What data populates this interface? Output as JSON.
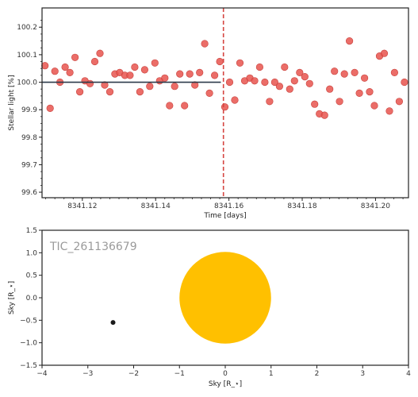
{
  "chart_data": [
    {
      "type": "scatter",
      "xlabel": "Time [days]",
      "ylabel": "Stellar light [%]",
      "xlim": [
        8341.109,
        8341.209
      ],
      "ylim": [
        99.58,
        100.27
      ],
      "xticks": [
        8341.12,
        8341.14,
        8341.16,
        8341.18,
        8341.2
      ],
      "xtick_labels": [
        "8341.12",
        "8341.14",
        "8341.16",
        "8341.18",
        "8341.20"
      ],
      "yticks": [
        99.6,
        99.7,
        99.8,
        99.9,
        100.0,
        100.1,
        100.2
      ],
      "ytick_labels": [
        "99.6",
        "99.7",
        "99.8",
        "99.9",
        "100.0",
        "100.1",
        "100.2"
      ],
      "grid": false,
      "colors": {
        "points": "#e8544e",
        "model_line": "#2b3a4a",
        "marker_line": "#d64541"
      },
      "model_line": {
        "x": [
          8341.109,
          8341.1578
        ],
        "y": [
          100.0,
          100.0
        ]
      },
      "vline": {
        "x": 8341.1585
      },
      "points": {
        "x": [
          8341.1098,
          8341.1112,
          8341.1125,
          8341.1139,
          8341.1153,
          8341.1166,
          8341.118,
          8341.1193,
          8341.1207,
          8341.1221,
          8341.1234,
          8341.1248,
          8341.1261,
          8341.1275,
          8341.1289,
          8341.1302,
          8341.1316,
          8341.133,
          8341.1343,
          8341.1357,
          8341.137,
          8341.1384,
          8341.1398,
          8341.1411,
          8341.1425,
          8341.1438,
          8341.1452,
          8341.1466,
          8341.1479,
          8341.1493,
          8341.1507,
          8341.152,
          8341.1534,
          8341.1547,
          8341.1561,
          8341.1575,
          8341.1589,
          8341.1602,
          8341.1616,
          8341.163,
          8341.1643,
          8341.1657,
          8341.167,
          8341.1684,
          8341.1698,
          8341.1711,
          8341.1725,
          8341.1738,
          8341.1752,
          8341.1766,
          8341.1779,
          8341.1793,
          8341.1807,
          8341.182,
          8341.1834,
          8341.1847,
          8341.1861,
          8341.1875,
          8341.1888,
          8341.1902,
          8341.1915,
          8341.1929,
          8341.1943,
          8341.1956,
          8341.197,
          8341.1984,
          8341.1997,
          8341.2011,
          8341.2024,
          8341.2038,
          8341.2052,
          8341.2065,
          8341.2079
        ],
        "y": [
          100.06,
          99.905,
          100.04,
          100.0,
          100.055,
          100.035,
          100.09,
          99.965,
          100.005,
          99.995,
          100.075,
          100.105,
          99.99,
          99.965,
          100.03,
          100.035,
          100.025,
          100.025,
          100.055,
          99.965,
          100.045,
          99.985,
          100.07,
          100.005,
          100.015,
          99.915,
          99.985,
          100.03,
          99.915,
          100.03,
          99.99,
          100.035,
          100.14,
          99.96,
          100.025,
          100.075,
          99.91,
          100.0,
          99.935,
          100.07,
          100.005,
          100.015,
          100.005,
          100.055,
          100.0,
          99.93,
          100.0,
          99.985,
          100.055,
          99.975,
          100.005,
          100.035,
          100.02,
          99.995,
          99.92,
          99.885,
          99.88,
          99.975,
          100.04,
          99.93,
          100.03,
          100.15,
          100.035,
          99.96,
          100.015,
          99.965,
          99.915,
          100.095,
          100.105,
          99.895,
          100.035,
          99.93,
          100.0
        ]
      }
    },
    {
      "type": "scatter",
      "title": "TIC_261136679",
      "xlabel": "Sky [R_⋆]",
      "ylabel": "Sky [R_⋆]",
      "xlim": [
        -4,
        4
      ],
      "ylim": [
        -1.5,
        1.5
      ],
      "xticks": [
        -4,
        -3,
        -2,
        -1,
        0,
        1,
        2,
        3,
        4
      ],
      "xtick_labels": [
        "−4",
        "−3",
        "−2",
        "−1",
        "0",
        "1",
        "2",
        "3",
        "4"
      ],
      "yticks": [
        -1.5,
        -1.0,
        -0.5,
        0.0,
        0.5,
        1.0,
        1.5
      ],
      "ytick_labels": [
        "−1.5",
        "−1.0",
        "−0.5",
        "0.0",
        "0.5",
        "1.0",
        "1.5"
      ],
      "colors": {
        "star": "#ffc000",
        "planet": "#1a1a1a"
      },
      "star": {
        "x": 0.0,
        "y": 0.0,
        "radius": 1.0
      },
      "planet": {
        "x": -2.45,
        "y": -0.55
      }
    }
  ]
}
